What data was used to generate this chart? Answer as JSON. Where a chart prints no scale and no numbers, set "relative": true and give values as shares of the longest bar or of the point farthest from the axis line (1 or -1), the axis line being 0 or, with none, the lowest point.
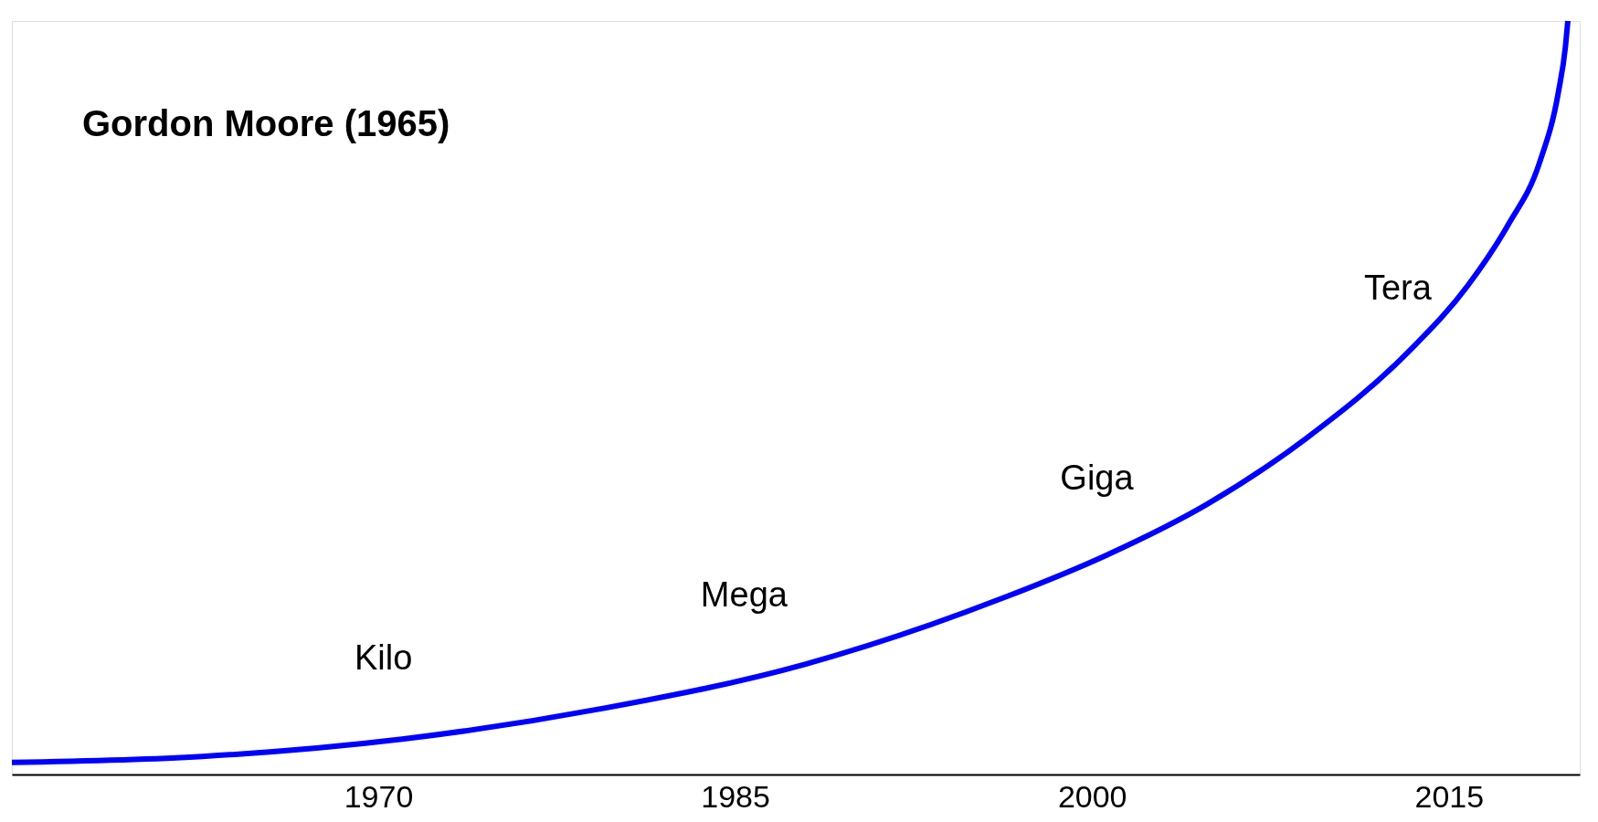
{
  "chart_data": {
    "type": "line",
    "title": "Gordon Moore (1965)",
    "relative": true,
    "x": [
      1954.6,
      1962.6,
      1971.0,
      1979.5,
      1987.9,
      1996.4,
      2000.6,
      2004.8,
      2009.0,
      2013.3,
      2015.8,
      2017.5,
      2018.8,
      2019.6,
      2019.9,
      2020.0
    ],
    "series": [
      {
        "color": "#0000ff",
        "values": [
          0.016,
          0.024,
          0.047,
          0.088,
          0.146,
          0.236,
          0.291,
          0.358,
          0.446,
          0.561,
          0.649,
          0.73,
          0.811,
          0.905,
          0.966,
          1.0
        ]
      }
    ],
    "xlim": [
      1954.6,
      2020.5
    ],
    "xticks": [
      1970,
      1985,
      2000,
      2015
    ],
    "grid": false,
    "annotations": [
      "Kilo",
      "Mega",
      "Giga",
      "Tera"
    ]
  }
}
